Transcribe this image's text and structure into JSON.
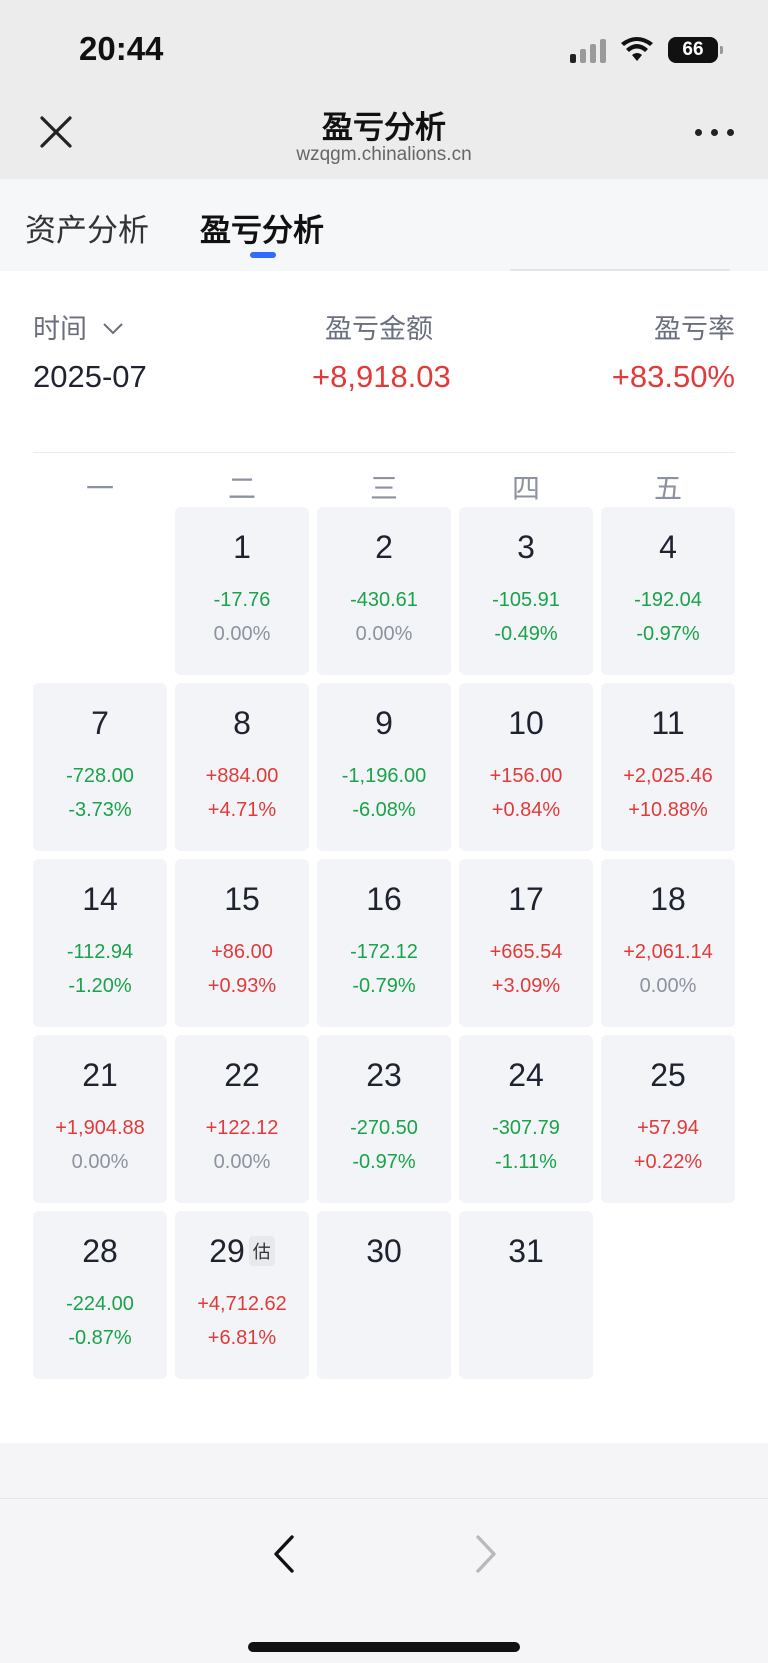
{
  "status": {
    "time": "20:44",
    "battery": "66"
  },
  "nav": {
    "title": "盈亏分析",
    "url": "wzqgm.chinalions.cn"
  },
  "tabs": [
    {
      "label": "资产分析"
    },
    {
      "label": "盈亏分析"
    }
  ],
  "summary": {
    "time_label": "时间",
    "time_value": "2025-07",
    "amount_label": "盈亏金额",
    "amount_value": "+8,918.03",
    "rate_label": "盈亏率",
    "rate_value": "+83.50%"
  },
  "weekdays": [
    "一",
    "二",
    "三",
    "四",
    "五"
  ],
  "calendar": [
    {
      "day": "1",
      "amount": "-17.76",
      "pct": "0.00%"
    },
    {
      "day": "2",
      "amount": "-430.61",
      "pct": "0.00%"
    },
    {
      "day": "3",
      "amount": "-105.91",
      "pct": "-0.49%"
    },
    {
      "day": "4",
      "amount": "-192.04",
      "pct": "-0.97%"
    },
    {
      "day": "7",
      "amount": "-728.00",
      "pct": "-3.73%"
    },
    {
      "day": "8",
      "amount": "+884.00",
      "pct": "+4.71%"
    },
    {
      "day": "9",
      "amount": "-1,196.00",
      "pct": "-6.08%"
    },
    {
      "day": "10",
      "amount": "+156.00",
      "pct": "+0.84%"
    },
    {
      "day": "11",
      "amount": "+2,025.46",
      "pct": "+10.88%"
    },
    {
      "day": "14",
      "amount": "-112.94",
      "pct": "-1.20%"
    },
    {
      "day": "15",
      "amount": "+86.00",
      "pct": "+0.93%"
    },
    {
      "day": "16",
      "amount": "-172.12",
      "pct": "-0.79%"
    },
    {
      "day": "17",
      "amount": "+665.54",
      "pct": "+3.09%"
    },
    {
      "day": "18",
      "amount": "+2,061.14",
      "pct": "0.00%"
    },
    {
      "day": "21",
      "amount": "+1,904.88",
      "pct": "0.00%"
    },
    {
      "day": "22",
      "amount": "+122.12",
      "pct": "0.00%"
    },
    {
      "day": "23",
      "amount": "-270.50",
      "pct": "-0.97%"
    },
    {
      "day": "24",
      "amount": "-307.79",
      "pct": "-1.11%"
    },
    {
      "day": "25",
      "amount": "+57.94",
      "pct": "+0.22%"
    },
    {
      "day": "28",
      "amount": "-224.00",
      "pct": "-0.87%"
    },
    {
      "day": "29",
      "amount": "+4,712.62",
      "pct": "+6.81%",
      "badge": "估"
    },
    {
      "day": "30",
      "amount": "",
      "pct": ""
    },
    {
      "day": "31",
      "amount": "",
      "pct": ""
    }
  ],
  "colors": {
    "positive": "#e23a3a",
    "negative": "#1aa34a",
    "neutral": "#8c92a0",
    "accent": "#2f6bff"
  }
}
